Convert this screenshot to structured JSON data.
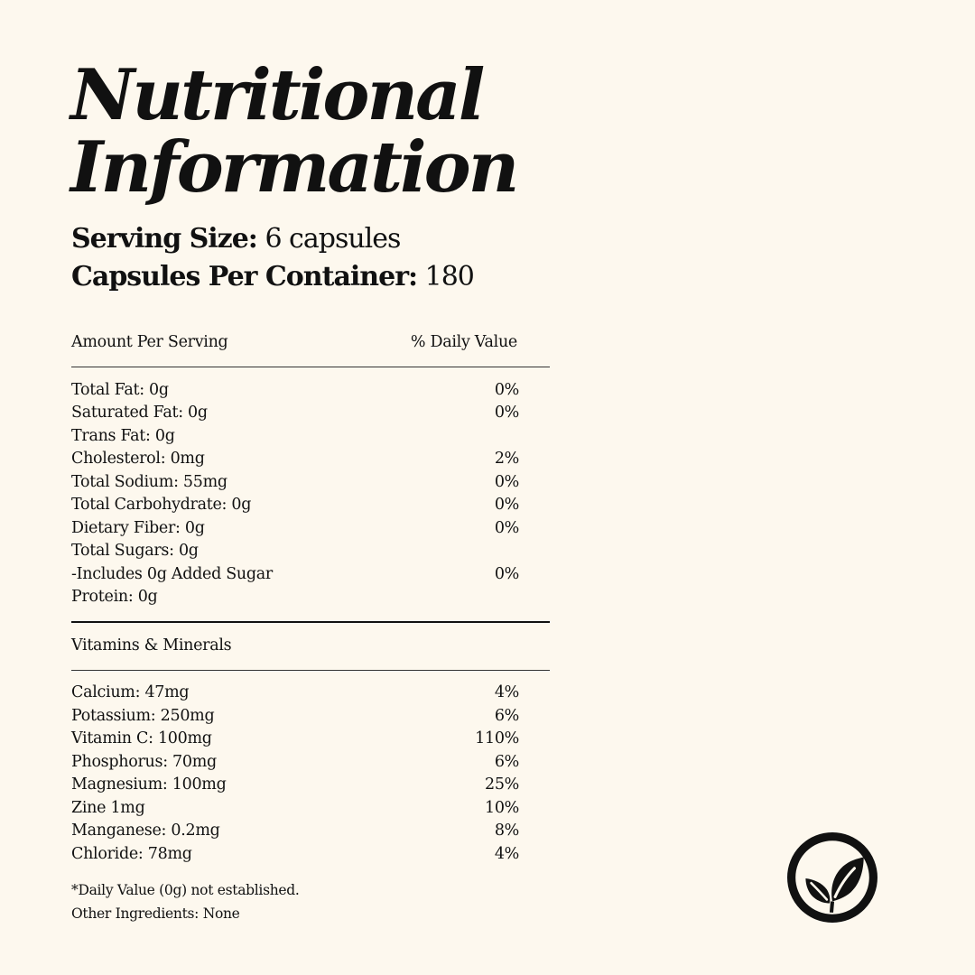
{
  "title": {
    "line1": "Nutritional",
    "line2": "Information"
  },
  "serving": {
    "size_label": "Serving Size:",
    "size_value": "6 capsules",
    "per_container_label": "Capsules Per Container:",
    "per_container_value": "180"
  },
  "table": {
    "header": {
      "label": "Amount Per Serving",
      "value": "% Daily Value"
    },
    "nutrients": [
      {
        "label": "Total Fat: 0g",
        "value": "0%"
      },
      {
        "label": "Saturated Fat: 0g",
        "value": "0%"
      },
      {
        "label": "Trans Fat: 0g",
        "value": ""
      },
      {
        "label": "Cholesterol: 0mg",
        "value": "2%"
      },
      {
        "label": "Total Sodium: 55mg",
        "value": "0%"
      },
      {
        "label": "Total Carbohydrate: 0g",
        "value": "0%"
      },
      {
        "label": "Dietary Fiber: 0g",
        "value": "0%"
      },
      {
        "label": "Total Sugars: 0g",
        "value": ""
      },
      {
        "label": "-Includes 0g Added Sugar",
        "value": "0%"
      },
      {
        "label": "Protein: 0g",
        "value": ""
      }
    ],
    "vitamins_heading": "Vitamins & Minerals",
    "vitamins": [
      {
        "label": "Calcium: 47mg",
        "value": "4%"
      },
      {
        "label": "Potassium: 250mg",
        "value": "6%"
      },
      {
        "label": "Vitamin C: 100mg",
        "value": "110%"
      },
      {
        "label": "Phosphorus: 70mg",
        "value": "6%"
      },
      {
        "label": "Magnesium: 100mg",
        "value": "25%"
      },
      {
        "label": "Zine 1mg",
        "value": "10%"
      },
      {
        "label": "Manganese: 0.2mg",
        "value": "8%"
      },
      {
        "label": "Chloride: 78mg",
        "value": "4%"
      }
    ]
  },
  "footer": {
    "note": "*Daily Value (0g) not established.",
    "other_ingredients": "Other Ingredients: None"
  },
  "logo": {
    "icon": "leaf-icon",
    "color": "#111111"
  },
  "colors": {
    "background": "#fdf8ee",
    "text": "#111111"
  }
}
